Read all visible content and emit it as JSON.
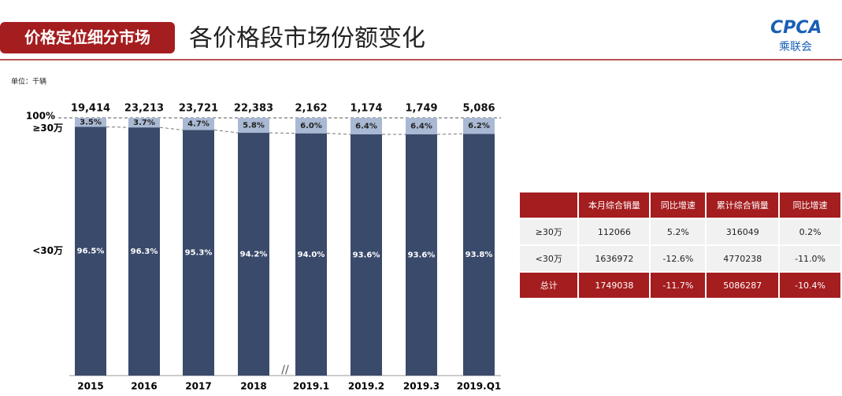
{
  "header": {
    "tag": "价格定位细分市场",
    "title": "各价格段市场份额变化",
    "logo_text": "CPCA",
    "logo_subtext": "乘联会"
  },
  "unit": "单位：千辆",
  "chart_data": {
    "type": "bar",
    "stacked": true,
    "categories": [
      "2015",
      "2016",
      "2017",
      "2018",
      "2019.1",
      "2019.2",
      "2019.3",
      "2019.Q1"
    ],
    "series": [
      {
        "name": "<30万",
        "color": "#3a4a6b",
        "values": [
          96.5,
          96.3,
          95.3,
          94.2,
          94.0,
          93.6,
          93.6,
          93.8
        ],
        "value_labels": [
          "96.5%",
          "96.3%",
          "95.3%",
          "94.2%",
          "94.0%",
          "93.6%",
          "93.6%",
          "93.8%"
        ]
      },
      {
        "name": "≥30万",
        "color": "#a9b9d3",
        "values": [
          3.5,
          3.7,
          4.7,
          5.8,
          6.0,
          6.4,
          6.4,
          6.2
        ],
        "value_labels": [
          "3.5%",
          "3.7%",
          "4.7%",
          "5.8%",
          "6.0%",
          "6.4%",
          "6.4%",
          "6.2%"
        ]
      }
    ],
    "totals": {
      "values": [
        19414,
        23213,
        23721,
        22383,
        2162,
        1174,
        1749,
        5086
      ],
      "value_labels": [
        "19,414",
        "23,213",
        "23,721",
        "22,383",
        "2,162",
        "1,174",
        "1,749",
        "5,086"
      ]
    },
    "ylim": [
      0,
      100
    ],
    "yticks": [
      {
        "value": 100,
        "label": "100%"
      }
    ]
  },
  "table": {
    "header": [
      "本月综合销量",
      "同比增速",
      "累计综合销量",
      "同比增速"
    ],
    "rows": [
      [
        "≥30万",
        "112066",
        "5.2%",
        "316049",
        "0.2%"
      ],
      [
        "<30万",
        "1636972",
        "-12.6%",
        "4770238",
        "-11.0%"
      ],
      [
        "总计",
        "1749038",
        "-11.7%",
        "5086287",
        "-10.4%"
      ]
    ]
  }
}
